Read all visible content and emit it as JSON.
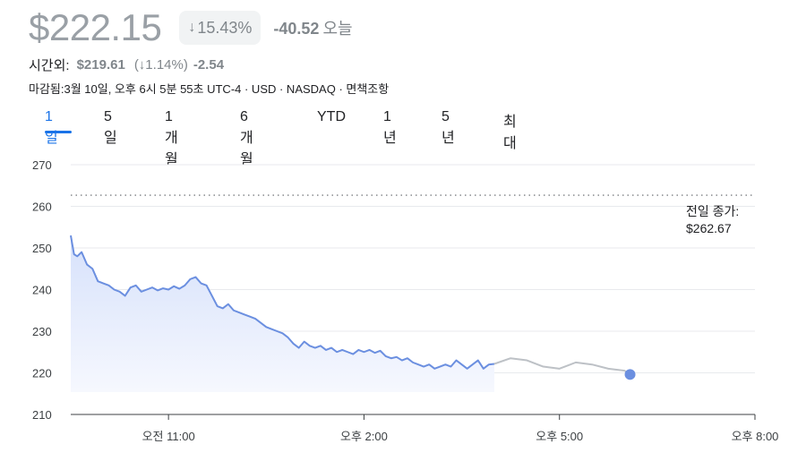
{
  "quote": {
    "price": "$222.15",
    "change_pct_arrow": "↓",
    "change_pct": "15.43%",
    "change_abs": "-40.52",
    "period_label": "오늘"
  },
  "after_hours": {
    "label": "시간외:",
    "price": "$219.61",
    "change_pct": "(↓1.14%)",
    "change_abs": "-2.54"
  },
  "meta": {
    "text": "마감됨:3월 10일, 오후 6시 5분 55초 UTC-4 · USD · NASDAQ · 면책조항"
  },
  "tabs": [
    {
      "label": "1일",
      "active": true
    },
    {
      "label": "5일"
    },
    {
      "label": "1개월"
    },
    {
      "label": "6개월"
    },
    {
      "label": "YTD"
    },
    {
      "label": "1년"
    },
    {
      "label": "5년"
    },
    {
      "label": "최대"
    }
  ],
  "previous_close": {
    "label": "전일 종가:",
    "value": "$262.67"
  },
  "colors": {
    "regular_line": "#6b8fe0",
    "after_hours_line": "#bdc1c6",
    "active_tab": "#1a73e8",
    "marker": "#6b8fe0"
  },
  "chart_data": {
    "type": "line",
    "y_ticks": [
      "270",
      "260",
      "250",
      "240",
      "230",
      "220",
      "210"
    ],
    "ylim": [
      210,
      270
    ],
    "x_ticks": [
      "오전 11:00",
      "오후 2:00",
      "오후 5:00",
      "오후 8:00"
    ],
    "x_range": [
      "오전 9:30",
      "오후 8:00"
    ],
    "grid": true,
    "reference_line": {
      "name": "전일 종가",
      "value": 262.67
    },
    "series": [
      {
        "name": "regular",
        "x": [
          "09:30",
          "09:33",
          "09:36",
          "09:40",
          "09:45",
          "09:50",
          "09:55",
          "10:00",
          "10:05",
          "10:10",
          "10:15",
          "10:20",
          "10:25",
          "10:30",
          "10:35",
          "10:40",
          "10:45",
          "10:50",
          "10:55",
          "11:00",
          "11:05",
          "11:10",
          "11:15",
          "11:20",
          "11:25",
          "11:30",
          "11:35",
          "11:40",
          "11:45",
          "11:50",
          "11:55",
          "12:00",
          "12:05",
          "12:10",
          "12:15",
          "12:20",
          "12:25",
          "12:30",
          "12:35",
          "12:40",
          "12:45",
          "12:50",
          "12:55",
          "13:00",
          "13:05",
          "13:10",
          "13:15",
          "13:20",
          "13:25",
          "13:30",
          "13:35",
          "13:40",
          "13:45",
          "13:50",
          "13:55",
          "14:00",
          "14:05",
          "14:10",
          "14:15",
          "14:20",
          "14:25",
          "14:30",
          "14:35",
          "14:40",
          "14:45",
          "14:50",
          "14:55",
          "15:00",
          "15:05",
          "15:10",
          "15:15",
          "15:20",
          "15:25",
          "15:30",
          "15:35",
          "15:40",
          "15:45",
          "15:50",
          "15:55",
          "16:00"
        ],
        "values": [
          253.0,
          248.5,
          248.0,
          249.0,
          246.0,
          245.0,
          242.0,
          241.5,
          241.0,
          240.0,
          239.5,
          238.5,
          240.5,
          241.0,
          239.5,
          240.0,
          240.5,
          239.8,
          240.3,
          240.0,
          240.8,
          240.2,
          241.0,
          242.5,
          243.0,
          241.5,
          241.0,
          238.5,
          236.0,
          235.5,
          236.5,
          235.0,
          234.5,
          234.0,
          233.5,
          233.0,
          232.0,
          231.0,
          230.5,
          230.0,
          229.5,
          228.5,
          227.0,
          226.0,
          227.5,
          226.5,
          226.0,
          226.5,
          225.5,
          226.0,
          225.0,
          225.5,
          225.0,
          224.5,
          225.5,
          225.0,
          225.5,
          224.8,
          225.3,
          224.0,
          223.5,
          223.8,
          223.0,
          223.5,
          222.5,
          222.0,
          221.5,
          222.0,
          221.0,
          221.5,
          222.0,
          221.5,
          223.0,
          222.0,
          221.0,
          222.0,
          223.0,
          221.0,
          222.0,
          222.15
        ]
      },
      {
        "name": "after_hours",
        "x": [
          "16:00",
          "16:15",
          "16:30",
          "16:45",
          "17:00",
          "17:15",
          "17:30",
          "17:45",
          "18:00",
          "18:05"
        ],
        "values": [
          222.15,
          223.5,
          223.0,
          221.5,
          221.0,
          222.5,
          222.0,
          221.0,
          220.5,
          219.61
        ]
      }
    ]
  }
}
